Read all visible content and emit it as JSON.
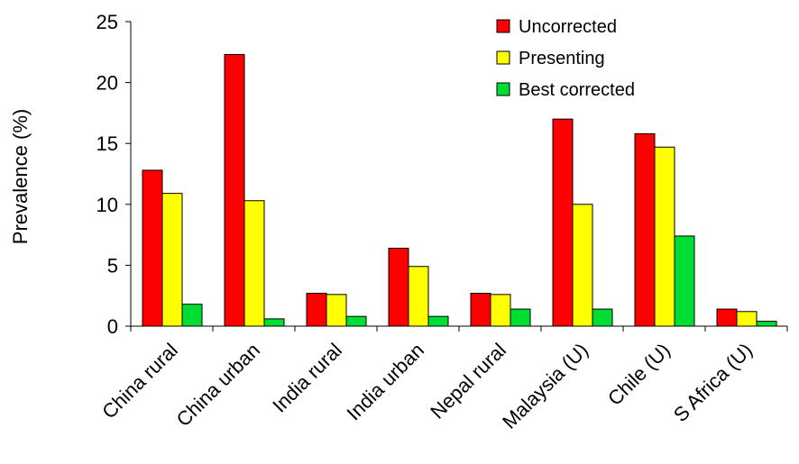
{
  "chart_data": {
    "type": "bar",
    "title": "",
    "xlabel": "",
    "ylabel": "Prevalence (%)",
    "ylim": [
      0,
      25
    ],
    "yticks": [
      0,
      5,
      10,
      15,
      20,
      25
    ],
    "grid": false,
    "legend_position": "top-right",
    "categories": [
      "China rural",
      "China urban",
      "India rural",
      "India urban",
      "Nepal  rural",
      "Malaysia (U)",
      "Chile (U)",
      "S Africa (U)"
    ],
    "series": [
      {
        "name": "Uncorrected",
        "color": "#ff0000",
        "values": [
          12.8,
          22.3,
          2.7,
          6.4,
          2.7,
          17.0,
          15.8,
          1.4
        ]
      },
      {
        "name": "Presenting",
        "color": "#ffff00",
        "values": [
          10.9,
          10.3,
          2.6,
          4.9,
          2.6,
          10.0,
          14.7,
          1.2
        ]
      },
      {
        "name": "Best corrected",
        "color": "#00dd33",
        "values": [
          1.8,
          0.6,
          0.8,
          0.8,
          1.4,
          1.4,
          7.4,
          0.4
        ]
      }
    ]
  }
}
